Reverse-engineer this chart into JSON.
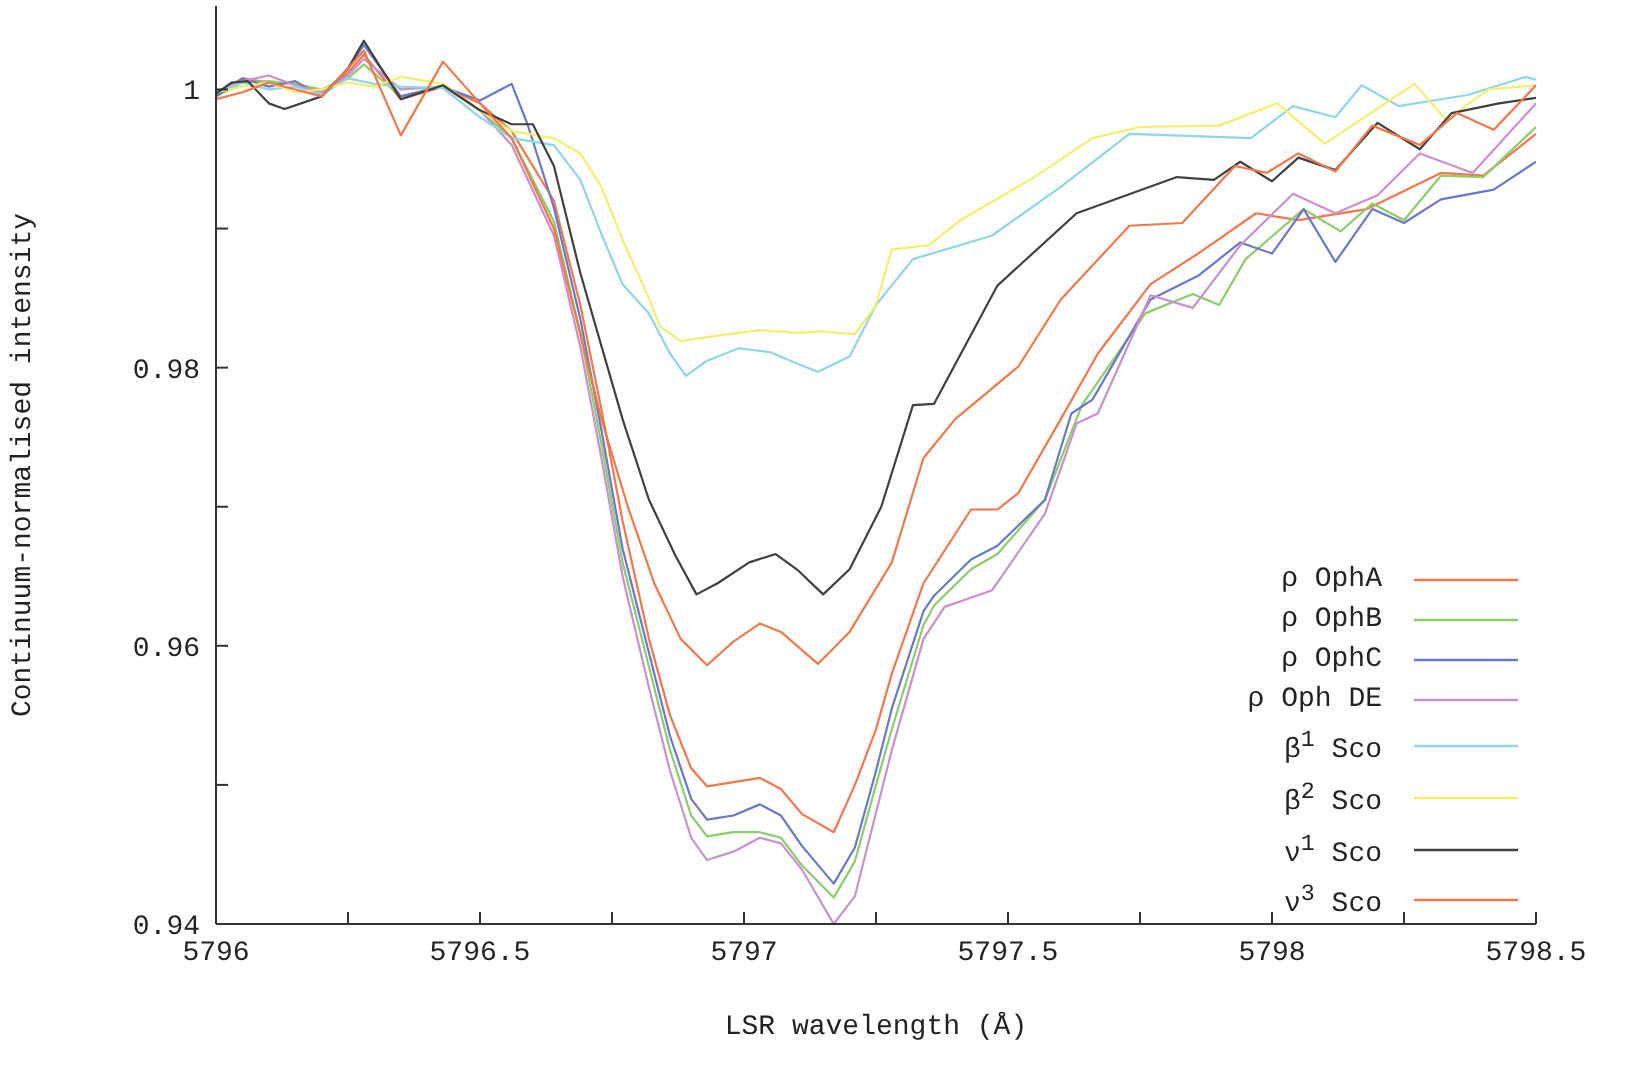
{
  "chart_data": {
    "type": "line",
    "xlabel": "LSR wavelength (Å)",
    "ylabel": "Continuum-normalised intensity",
    "xlim": [
      5796,
      5798.5
    ],
    "xticks": [
      5796,
      {
        "value": 5796.25,
        "label": null
      },
      5796.5,
      {
        "value": 5796.75,
        "label": null
      },
      5797,
      {
        "value": 5797.25,
        "label": null
      },
      5797.5,
      {
        "value": 5797.75,
        "label": null
      },
      5798,
      {
        "value": 5798.25,
        "label": null
      },
      5798.5
    ],
    "ylim": [
      0.94,
      1.006
    ],
    "yticks": [
      0.94,
      {
        "value": 0.95,
        "label": null
      },
      0.96,
      {
        "value": 0.97,
        "label": null
      },
      0.98,
      {
        "value": 0.99,
        "label": null
      },
      1
    ],
    "legend": "bottom right",
    "marker": "none",
    "line_style": "solid",
    "series": [
      {
        "name": "ρ OphA",
        "color": "#f4764c",
        "x": [
          5796,
          5796.05,
          5796.1,
          5796.15,
          5796.2,
          5796.25,
          5796.28,
          5796.35,
          5796.43,
          5796.5,
          5796.56,
          5796.64,
          5796.69,
          5796.73,
          5796.77,
          5796.82,
          5796.86,
          5796.9,
          5796.93,
          5796.98,
          5797.03,
          5797.07,
          5797.11,
          5797.17,
          5797.21,
          5797.25,
          5797.28,
          5797.34,
          5797.43,
          5797.48,
          5797.52,
          5797.6,
          5797.67,
          5797.77,
          5797.86,
          5797.97,
          5798.05,
          5798.18,
          5798.32,
          5798.4,
          5798.5
        ],
        "values": [
          0.9997,
          1.0008,
          1.0005,
          1.0004,
          0.9998,
          1.0012,
          1.0025,
          0.9993,
          1.0002,
          0.999,
          0.997,
          0.992,
          0.9845,
          0.977,
          0.969,
          0.9605,
          0.955,
          0.9512,
          0.9499,
          0.9502,
          0.9505,
          0.9497,
          0.9479,
          0.9466,
          0.95,
          0.954,
          0.958,
          0.9645,
          0.9698,
          0.9698,
          0.971,
          0.9763,
          0.981,
          0.986,
          0.9882,
          0.9911,
          0.9906,
          0.9914,
          0.994,
          0.9938,
          0.9968
        ]
      },
      {
        "name": "ρ OphB",
        "color": "#8ccc6a",
        "x": [
          5796,
          5796.05,
          5796.1,
          5796.15,
          5796.2,
          5796.25,
          5796.28,
          5796.35,
          5796.43,
          5796.5,
          5796.56,
          5796.64,
          5796.69,
          5796.73,
          5796.77,
          5796.82,
          5796.86,
          5796.9,
          5796.93,
          5796.98,
          5797.03,
          5797.07,
          5797.11,
          5797.17,
          5797.21,
          5797.25,
          5797.28,
          5797.34,
          5797.36,
          5797.43,
          5797.48,
          5797.57,
          5797.64,
          5797.76,
          5797.85,
          5797.9,
          5797.95,
          5798.06,
          5798.13,
          5798.19,
          5798.25,
          5798.32,
          5798.4,
          5798.5
        ],
        "values": [
          0.9995,
          1.0005,
          1.0006,
          1.0004,
          1.0,
          1.0008,
          1.0018,
          0.9995,
          1.0003,
          0.9985,
          0.9965,
          0.9905,
          0.9825,
          0.9745,
          0.966,
          0.9585,
          0.9525,
          0.9478,
          0.9463,
          0.9466,
          0.9466,
          0.9462,
          0.9442,
          0.9419,
          0.9445,
          0.95,
          0.954,
          0.9615,
          0.9629,
          0.9655,
          0.9666,
          0.9705,
          0.9773,
          0.9839,
          0.9853,
          0.9845,
          0.9878,
          0.9914,
          0.9898,
          0.9918,
          0.9906,
          0.9938,
          0.9937,
          0.9973
        ]
      },
      {
        "name": "ρ OphC",
        "color": "#6a78c8",
        "x": [
          5796,
          5796.05,
          5796.1,
          5796.15,
          5796.2,
          5796.25,
          5796.28,
          5796.35,
          5796.43,
          5796.5,
          5796.56,
          5796.59,
          5796.64,
          5796.69,
          5796.73,
          5796.77,
          5796.82,
          5796.86,
          5796.9,
          5796.93,
          5796.98,
          5797.03,
          5797.07,
          5797.11,
          5797.17,
          5797.21,
          5797.25,
          5797.28,
          5797.34,
          5797.36,
          5797.43,
          5797.48,
          5797.57,
          5797.62,
          5797.66,
          5797.77,
          5797.86,
          5797.94,
          5798,
          5798.06,
          5798.12,
          5798.19,
          5798.25,
          5798.32,
          5798.42,
          5798.5
        ],
        "values": [
          0.9995,
          1.0008,
          1.0002,
          1.0006,
          0.9995,
          1.0015,
          1.0032,
          0.9995,
          1.0002,
          0.9992,
          1.0004,
          0.9975,
          0.9915,
          0.9835,
          0.9755,
          0.967,
          0.9595,
          0.9535,
          0.949,
          0.9475,
          0.9478,
          0.9486,
          0.9478,
          0.9456,
          0.9429,
          0.9455,
          0.951,
          0.9555,
          0.9625,
          0.9636,
          0.9662,
          0.9672,
          0.9705,
          0.9767,
          0.9777,
          0.9849,
          0.9866,
          0.989,
          0.9882,
          0.9914,
          0.9876,
          0.9914,
          0.9904,
          0.9921,
          0.9928,
          0.9948
        ]
      },
      {
        "name": "ρ Oph DE",
        "color": "#c990d0",
        "x": [
          5796,
          5796.05,
          5796.1,
          5796.15,
          5796.2,
          5796.25,
          5796.28,
          5796.35,
          5796.43,
          5796.5,
          5796.56,
          5796.64,
          5796.69,
          5796.73,
          5796.77,
          5796.82,
          5796.86,
          5796.9,
          5796.93,
          5796.98,
          5797.03,
          5797.07,
          5797.11,
          5797.17,
          5797.21,
          5797.25,
          5797.28,
          5797.34,
          5797.38,
          5797.47,
          5797.57,
          5797.63,
          5797.67,
          5797.77,
          5797.85,
          5797.94,
          5798.04,
          5798.12,
          5798.2,
          5798.28,
          5798.38,
          5798.5
        ],
        "values": [
          0.9998,
          1.0006,
          1.001,
          1.0003,
          0.9998,
          1.001,
          1.0022,
          1.0,
          1.0002,
          0.9985,
          0.996,
          0.9895,
          0.9815,
          0.9735,
          0.965,
          0.957,
          0.951,
          0.9462,
          0.9446,
          0.9452,
          0.9462,
          0.9458,
          0.9439,
          0.94,
          0.942,
          0.948,
          0.9525,
          0.9605,
          0.9628,
          0.964,
          0.9695,
          0.976,
          0.9767,
          0.9852,
          0.9843,
          0.9888,
          0.9925,
          0.9911,
          0.9924,
          0.9954,
          0.994,
          0.999
        ]
      },
      {
        "name": "β$^{1}$ Sco",
        "color": "#8ed6e6",
        "x": [
          5796,
          5796.05,
          5796.1,
          5796.15,
          5796.2,
          5796.25,
          5796.3,
          5796.35,
          5796.43,
          5796.5,
          5796.56,
          5796.64,
          5796.69,
          5796.73,
          5796.77,
          5796.82,
          5796.86,
          5796.89,
          5796.93,
          5796.99,
          5797.05,
          5797.1,
          5797.14,
          5797.2,
          5797.25,
          5797.32,
          5797.47,
          5797.6,
          5797.73,
          5797.96,
          5798.04,
          5798.12,
          5798.17,
          5798.24,
          5798.37,
          5798.48,
          5798.5
        ],
        "values": [
          0.9998,
          1.0005,
          1.0,
          1.0002,
          0.9996,
          1.0008,
          1.0004,
          1.0002,
          1.0001,
          0.998,
          0.9965,
          0.996,
          0.9935,
          0.9896,
          0.986,
          0.9839,
          0.981,
          0.9794,
          0.9805,
          0.9814,
          0.9811,
          0.9803,
          0.9797,
          0.9808,
          0.9845,
          0.9878,
          0.9895,
          0.993,
          0.9968,
          0.9965,
          0.9988,
          0.998,
          1.0003,
          0.9988,
          0.9996,
          1.0009,
          1.0007
        ]
      },
      {
        "name": "β$^{2}$ Sco",
        "color": "#f4ee6c",
        "x": [
          5796,
          5796.05,
          5796.1,
          5796.15,
          5796.2,
          5796.25,
          5796.3,
          5796.35,
          5796.43,
          5796.5,
          5796.56,
          5796.64,
          5796.69,
          5796.73,
          5796.77,
          5796.82,
          5796.84,
          5796.88,
          5796.95,
          5797.03,
          5797.1,
          5797.15,
          5797.21,
          5797.25,
          5797.28,
          5797.35,
          5797.41,
          5797.55,
          5797.66,
          5797.75,
          5797.9,
          5798.01,
          5798.1,
          5798.27,
          5798.33,
          5798.41,
          5798.5
        ],
        "values": [
          0.9998,
          1.0002,
          1.0005,
          0.9998,
          1.0,
          1.0005,
          1.0002,
          1.0009,
          1.0004,
          0.9985,
          0.997,
          0.9965,
          0.9954,
          0.993,
          0.9892,
          0.985,
          0.983,
          0.9819,
          0.9823,
          0.9827,
          0.9825,
          0.9826,
          0.9824,
          0.9845,
          0.9885,
          0.9888,
          0.9906,
          0.9937,
          0.9965,
          0.9973,
          0.9974,
          0.999,
          0.9961,
          1.0004,
          0.9978,
          1.0,
          1.0003
        ]
      },
      {
        "name": "ν$^{1}$ Sco",
        "color": "#404040",
        "x": [
          5796,
          5796.03,
          5796.06,
          5796.1,
          5796.13,
          5796.2,
          5796.25,
          5796.28,
          5796.35,
          5796.43,
          5796.5,
          5796.56,
          5796.6,
          5796.64,
          5796.69,
          5796.77,
          5796.82,
          5796.87,
          5796.91,
          5796.95,
          5797.01,
          5797.06,
          5797.1,
          5797.15,
          5797.2,
          5797.26,
          5797.32,
          5797.36,
          5797.48,
          5797.63,
          5797.82,
          5797.89,
          5797.94,
          5798,
          5798.05,
          5798.12,
          5798.2,
          5798.28,
          5798.34,
          5798.43,
          5798.5
        ],
        "values": [
          0.9997,
          1.0005,
          1.0006,
          0.999,
          0.9986,
          0.9995,
          1.0015,
          1.0035,
          0.9993,
          1.0003,
          0.9985,
          0.9975,
          0.9975,
          0.9945,
          0.9868,
          0.9763,
          0.9705,
          0.9665,
          0.9637,
          0.9645,
          0.966,
          0.9666,
          0.9655,
          0.9637,
          0.9655,
          0.97,
          0.9773,
          0.9774,
          0.9859,
          0.9911,
          0.9937,
          0.9935,
          0.9948,
          0.9934,
          0.9951,
          0.9942,
          0.9976,
          0.9957,
          0.9983,
          0.999,
          0.9994
        ]
      },
      {
        "name": "ν$^{3}$ Sco",
        "color": "#f0784a",
        "x": [
          5796,
          5796.05,
          5796.1,
          5796.15,
          5796.2,
          5796.25,
          5796.28,
          5796.35,
          5796.43,
          5796.5,
          5796.56,
          5796.64,
          5796.73,
          5796.78,
          5796.83,
          5796.88,
          5796.93,
          5796.98,
          5797.03,
          5797.07,
          5797.14,
          5797.2,
          5797.28,
          5797.34,
          5797.4,
          5797.52,
          5797.6,
          5797.73,
          5797.83,
          5797.93,
          5797.99,
          5798.05,
          5798.12,
          5798.19,
          5798.28,
          5798.35,
          5798.42,
          5798.5
        ],
        "values": [
          0.9993,
          0.9998,
          1.0005,
          1.0,
          0.9995,
          1.0015,
          1.0028,
          0.9967,
          1.002,
          0.999,
          0.9965,
          0.99,
          0.9763,
          0.97,
          0.9645,
          0.9605,
          0.9586,
          0.9603,
          0.9616,
          0.961,
          0.9587,
          0.961,
          0.966,
          0.9735,
          0.9763,
          0.9801,
          0.9849,
          0.9902,
          0.9904,
          0.9945,
          0.994,
          0.9954,
          0.9941,
          0.9974,
          0.996,
          0.9983,
          0.9971,
          1.0003
        ]
      }
    ]
  }
}
